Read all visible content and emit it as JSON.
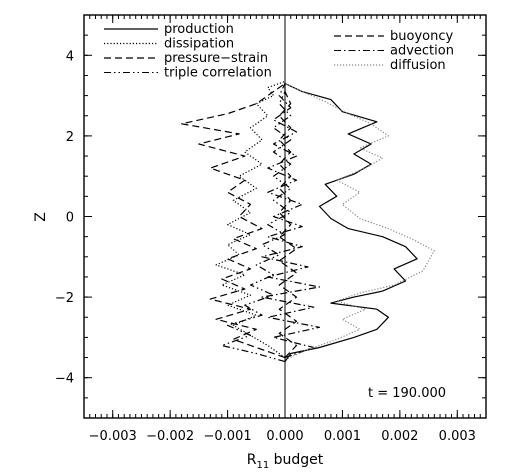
{
  "chart_data": {
    "type": "line",
    "xlabel": "R",
    "xlabel_subscript": "11",
    "xlabel_suffix": " budget",
    "ylabel": "Z",
    "xlim": [
      -0.0035,
      0.0035
    ],
    "ylim": [
      -5,
      5
    ],
    "x_ticks": [
      -0.003,
      -0.002,
      -0.001,
      0.0,
      0.001,
      0.002,
      0.003
    ],
    "x_tick_labels": [
      "−0.003",
      "−0.002",
      "−0.001",
      "0.000",
      "0.001",
      "0.002",
      "0.003"
    ],
    "y_ticks": [
      -4,
      -2,
      0,
      2,
      4
    ],
    "y_tick_labels": [
      "−4",
      "−2",
      "0",
      "2",
      "4"
    ],
    "annotation": "t = 190.000",
    "legend_left": [
      "production",
      "dissipation",
      "pressure−strain",
      "triple correlation"
    ],
    "legend_right": [
      "buoyoncy",
      "advection",
      "diffusion"
    ],
    "grid": false,
    "series": [
      {
        "name": "production",
        "style": "solid",
        "color": "#000000",
        "points": [
          [
            0.0,
            -3.6
          ],
          [
            0.0001,
            -3.4
          ],
          [
            0.0006,
            -3.25
          ],
          [
            0.0012,
            -3.0
          ],
          [
            0.0016,
            -2.8
          ],
          [
            0.0018,
            -2.5
          ],
          [
            0.0016,
            -2.3
          ],
          [
            0.0008,
            -2.15
          ],
          [
            0.0012,
            -2.0
          ],
          [
            0.0017,
            -1.85
          ],
          [
            0.0021,
            -1.6
          ],
          [
            0.0019,
            -1.3
          ],
          [
            0.0023,
            -1.05
          ],
          [
            0.0021,
            -0.75
          ],
          [
            0.0017,
            -0.5
          ],
          [
            0.0011,
            -0.3
          ],
          [
            0.0008,
            -0.05
          ],
          [
            0.0006,
            0.25
          ],
          [
            0.0009,
            0.5
          ],
          [
            0.0007,
            0.8
          ],
          [
            0.0012,
            1.05
          ],
          [
            0.0015,
            1.3
          ],
          [
            0.0012,
            1.55
          ],
          [
            0.0015,
            1.8
          ],
          [
            0.0011,
            2.05
          ],
          [
            0.0016,
            2.35
          ],
          [
            0.001,
            2.6
          ],
          [
            0.0008,
            2.9
          ],
          [
            0.0003,
            3.1
          ],
          [
            0.0,
            3.3
          ]
        ]
      },
      {
        "name": "dissipation",
        "style": "dotted",
        "color": "#000000",
        "points": [
          [
            0.0,
            -3.5
          ],
          [
            -0.0003,
            -3.2
          ],
          [
            -0.0006,
            -2.95
          ],
          [
            -0.0009,
            -2.7
          ],
          [
            -0.0005,
            -2.45
          ],
          [
            -0.001,
            -2.2
          ],
          [
            -0.0006,
            -1.95
          ],
          [
            -0.0011,
            -1.7
          ],
          [
            -0.0007,
            -1.45
          ],
          [
            -0.0012,
            -1.2
          ],
          [
            -0.0008,
            -0.95
          ],
          [
            -0.001,
            -0.7
          ],
          [
            -0.0006,
            -0.45
          ],
          [
            -0.001,
            -0.2
          ],
          [
            -0.0006,
            0.1
          ],
          [
            -0.0009,
            0.4
          ],
          [
            -0.0005,
            0.7
          ],
          [
            -0.0008,
            1.0
          ],
          [
            -0.0004,
            1.3
          ],
          [
            -0.0007,
            1.6
          ],
          [
            -0.0004,
            1.9
          ],
          [
            -0.0006,
            2.2
          ],
          [
            -0.0003,
            2.5
          ],
          [
            -0.0005,
            2.8
          ],
          [
            -0.0002,
            3.0
          ],
          [
            -0.0003,
            3.2
          ],
          [
            0.0,
            3.35
          ]
        ]
      },
      {
        "name": "pressure−strain",
        "style": "dashed",
        "color": "#000000",
        "points": [
          [
            0.0,
            -3.5
          ],
          [
            -0.0004,
            -3.3
          ],
          [
            -0.0009,
            -3.05
          ],
          [
            -0.0005,
            -2.8
          ],
          [
            -0.0012,
            -2.55
          ],
          [
            -0.0006,
            -2.3
          ],
          [
            -0.0013,
            -2.05
          ],
          [
            -0.0007,
            -1.8
          ],
          [
            -0.0011,
            -1.55
          ],
          [
            -0.0006,
            -1.3
          ],
          [
            -0.001,
            -1.05
          ],
          [
            -0.0005,
            -0.8
          ],
          [
            -0.0009,
            -0.55
          ],
          [
            -0.0004,
            -0.3
          ],
          [
            -0.0008,
            0.0
          ],
          [
            -0.0006,
            0.3
          ],
          [
            -0.001,
            0.6
          ],
          [
            -0.0007,
            0.9
          ],
          [
            -0.0013,
            1.2
          ],
          [
            -0.0007,
            1.5
          ],
          [
            -0.0015,
            1.8
          ],
          [
            -0.0008,
            2.05
          ],
          [
            -0.0018,
            2.3
          ],
          [
            -0.001,
            2.55
          ],
          [
            -0.0005,
            2.8
          ],
          [
            -0.0002,
            3.1
          ],
          [
            0.0,
            3.3
          ]
        ]
      },
      {
        "name": "triple correlation",
        "style": "dashdotdot",
        "color": "#000000",
        "points": [
          [
            0.0,
            -3.6
          ],
          [
            -0.0005,
            -3.4
          ],
          [
            -0.0011,
            -3.2
          ],
          [
            -0.0006,
            -2.95
          ],
          [
            -0.001,
            -2.7
          ],
          [
            -0.0004,
            -2.45
          ],
          [
            -0.0007,
            -2.2
          ],
          [
            -0.0002,
            -1.95
          ],
          [
            -0.0006,
            -1.7
          ],
          [
            -0.0002,
            -1.45
          ],
          [
            -0.0005,
            -1.2
          ],
          [
            -0.0001,
            -0.95
          ],
          [
            -0.0004,
            -0.7
          ],
          [
            0.0,
            -0.45
          ],
          [
            -0.0003,
            -0.2
          ],
          [
            0.0001,
            0.1
          ],
          [
            -0.0002,
            0.4
          ],
          [
            0.0001,
            0.7
          ],
          [
            -0.0002,
            1.0
          ],
          [
            0.0001,
            1.3
          ],
          [
            -0.0002,
            1.6
          ],
          [
            0.0001,
            1.9
          ],
          [
            -0.0002,
            2.2
          ],
          [
            0.0001,
            2.5
          ],
          [
            -0.0001,
            2.8
          ],
          [
            0.0,
            3.1
          ],
          [
            0.0,
            3.3
          ]
        ]
      },
      {
        "name": "buoyoncy",
        "style": "dashed",
        "color": "#000000",
        "points": [
          [
            0.0,
            -3.5
          ],
          [
            0.0002,
            -3.2
          ],
          [
            -0.0001,
            -2.9
          ],
          [
            0.0002,
            -2.6
          ],
          [
            -0.0001,
            -2.3
          ],
          [
            0.0002,
            -2.0
          ],
          [
            -0.0001,
            -1.7
          ],
          [
            0.0002,
            -1.4
          ],
          [
            -0.0001,
            -1.1
          ],
          [
            0.0002,
            -0.8
          ],
          [
            -0.0001,
            -0.5
          ],
          [
            0.0001,
            -0.2
          ],
          [
            -0.0001,
            0.1
          ],
          [
            0.0001,
            0.4
          ],
          [
            -0.0001,
            0.7
          ],
          [
            0.0001,
            1.0
          ],
          [
            -0.0001,
            1.3
          ],
          [
            0.0001,
            1.6
          ],
          [
            -0.0001,
            1.9
          ],
          [
            0.0001,
            2.2
          ],
          [
            -0.0001,
            2.5
          ],
          [
            0.0001,
            2.8
          ],
          [
            0.0,
            3.1
          ],
          [
            0.0,
            3.3
          ]
        ]
      },
      {
        "name": "advection",
        "style": "dashdot",
        "color": "#000000",
        "points": [
          [
            0.0,
            -3.5
          ],
          [
            0.0005,
            -3.25
          ],
          [
            -0.0002,
            -3.0
          ],
          [
            0.0006,
            -2.75
          ],
          [
            -0.0003,
            -2.5
          ],
          [
            0.0005,
            -2.25
          ],
          [
            -0.0004,
            -2.0
          ],
          [
            0.0006,
            -1.75
          ],
          [
            -0.0003,
            -1.5
          ],
          [
            0.0004,
            -1.25
          ],
          [
            -0.0004,
            -1.0
          ],
          [
            0.0003,
            -0.75
          ],
          [
            -0.0003,
            -0.5
          ],
          [
            0.0003,
            -0.25
          ],
          [
            -0.0002,
            0.0
          ],
          [
            0.0003,
            0.3
          ],
          [
            -0.0003,
            0.6
          ],
          [
            0.0002,
            0.9
          ],
          [
            -0.0003,
            1.2
          ],
          [
            0.0002,
            1.5
          ],
          [
            -0.0002,
            1.8
          ],
          [
            0.0002,
            2.1
          ],
          [
            -0.0002,
            2.4
          ],
          [
            0.0001,
            2.7
          ],
          [
            -0.0001,
            3.0
          ],
          [
            0.0,
            3.3
          ]
        ]
      },
      {
        "name": "diffusion",
        "style": "dotted-gray",
        "color": "#888888",
        "points": [
          [
            0.0,
            -3.55
          ],
          [
            0.0004,
            -3.3
          ],
          [
            0.0009,
            -3.05
          ],
          [
            0.0013,
            -2.8
          ],
          [
            0.001,
            -2.55
          ],
          [
            0.0014,
            -2.3
          ],
          [
            0.0009,
            -2.1
          ],
          [
            0.0013,
            -1.9
          ],
          [
            0.0019,
            -1.7
          ],
          [
            0.0024,
            -1.35
          ],
          [
            0.0026,
            -0.85
          ],
          [
            0.0022,
            -0.55
          ],
          [
            0.0018,
            -0.3
          ],
          [
            0.0013,
            -0.05
          ],
          [
            0.001,
            0.3
          ],
          [
            0.0013,
            0.6
          ],
          [
            0.0009,
            0.9
          ],
          [
            0.0014,
            1.2
          ],
          [
            0.0017,
            1.45
          ],
          [
            0.0013,
            1.7
          ],
          [
            0.0018,
            2.0
          ],
          [
            0.0015,
            2.3
          ],
          [
            0.0011,
            2.55
          ],
          [
            0.0007,
            2.85
          ],
          [
            0.0003,
            3.1
          ],
          [
            0.0,
            3.3
          ]
        ]
      }
    ]
  }
}
